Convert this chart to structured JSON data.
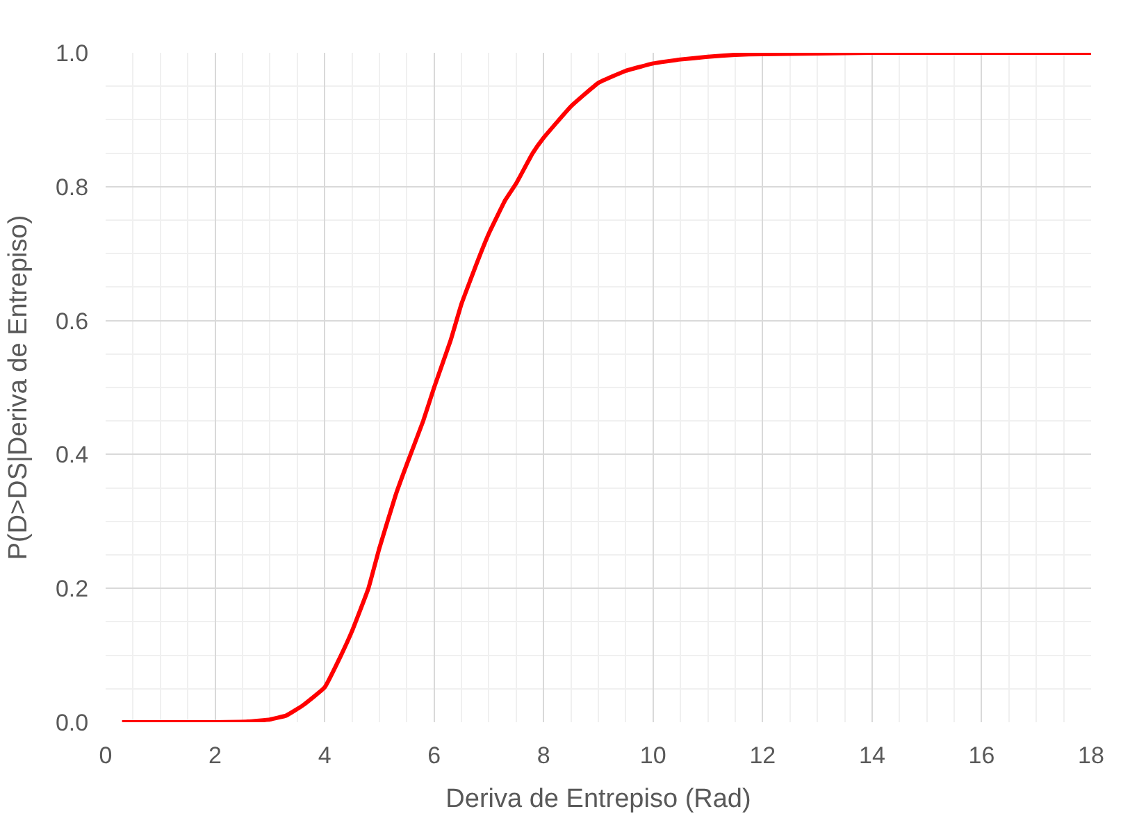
{
  "chart_data": {
    "type": "line",
    "xlabel": "Deriva de Entrepiso (Rad)",
    "ylabel": "P(D>DS|Deriva de Entrepiso)",
    "series": [
      {
        "color": "#ff0000",
        "x": [
          0.3,
          1,
          2,
          2.6,
          3,
          3.3,
          3.6,
          4,
          4.3,
          4.5,
          4.8,
          5,
          5.3,
          5.5,
          5.8,
          6,
          6.3,
          6.5,
          6.8,
          7,
          7.3,
          7.5,
          7.8,
          8,
          8.5,
          9,
          9.5,
          10,
          10.5,
          11,
          11.5,
          12,
          13,
          14,
          16,
          18
        ],
        "values": [
          0,
          0,
          0,
          0.001,
          0.004,
          0.01,
          0.025,
          0.052,
          0.1,
          0.136,
          0.2,
          0.26,
          0.34,
          0.385,
          0.45,
          0.5,
          0.57,
          0.625,
          0.69,
          0.73,
          0.78,
          0.805,
          0.85,
          0.873,
          0.92,
          0.955,
          0.973,
          0.984,
          0.99,
          0.994,
          0.997,
          0.998,
          0.999,
          1,
          1,
          1
        ]
      }
    ],
    "xlim": [
      0,
      18
    ],
    "xticks": [
      0,
      2,
      4,
      6,
      8,
      10,
      12,
      14,
      16,
      18
    ],
    "ylim": [
      0,
      1
    ],
    "yticks": [
      {
        "value": 0,
        "label": "0.0"
      },
      {
        "value": 0.2,
        "label": "0.2"
      },
      {
        "value": 0.4,
        "label": "0.4"
      },
      {
        "value": 0.6,
        "label": "0.6"
      },
      {
        "value": 0.8,
        "label": "0.8"
      },
      {
        "value": 1,
        "label": "1.0"
      }
    ],
    "grid": true,
    "marker": "none",
    "line_style": "solid"
  }
}
